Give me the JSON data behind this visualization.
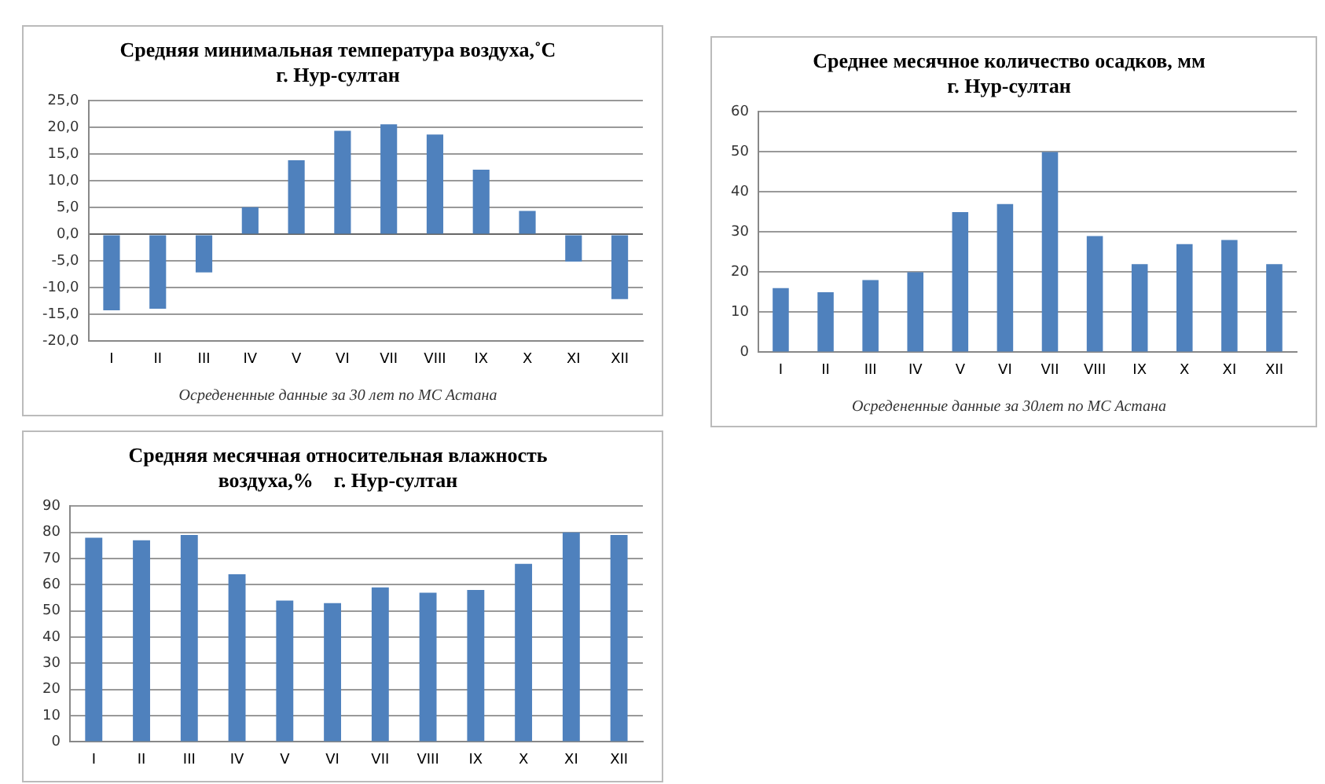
{
  "chart_data": [
    {
      "type": "bar",
      "title": [
        "Средняя минимальная температура воздуха,˚C",
        "г. Нур-султан"
      ],
      "categories": [
        "I",
        "II",
        "III",
        "IV",
        "V",
        "VI",
        "VII",
        "VIII",
        "IX",
        "X",
        "XI",
        "XII"
      ],
      "values": [
        -14.2,
        -13.9,
        -7.1,
        5.1,
        13.9,
        19.4,
        20.6,
        18.7,
        12.1,
        4.4,
        -5.1,
        -12.1
      ],
      "color": "#4f81bd",
      "ylim": [
        -20,
        25
      ],
      "yticks": [
        {
          "value": -20,
          "label": "-20,0"
        },
        {
          "value": -15,
          "label": "-15,0"
        },
        {
          "value": -10,
          "label": "-10,0"
        },
        {
          "value": -5,
          "label": "-5,0"
        },
        {
          "value": 0,
          "label": "0,0"
        },
        {
          "value": 5,
          "label": "5,0"
        },
        {
          "value": 10,
          "label": "10,0"
        },
        {
          "value": 15,
          "label": "15,0"
        },
        {
          "value": 20,
          "label": "20,0"
        },
        {
          "value": 25,
          "label": "25,0"
        }
      ],
      "grid": "y",
      "annotations": [
        "Осредененные данные за 30 лет по МС Астана"
      ]
    },
    {
      "type": "bar",
      "title": [
        "Среднее месячное количество осадков, мм",
        "г. Нур-султан"
      ],
      "categories": [
        "I",
        "II",
        "III",
        "IV",
        "V",
        "VI",
        "VII",
        "VIII",
        "IX",
        "X",
        "XI",
        "XII"
      ],
      "values": [
        16,
        15,
        18,
        20,
        35,
        37,
        50,
        29,
        22,
        27,
        28,
        22
      ],
      "color": "#4f81bd",
      "ylim": [
        0,
        60
      ],
      "yticks": [
        0,
        10,
        20,
        30,
        40,
        50,
        60
      ],
      "grid": "y",
      "annotations": [
        "Осредененные данные за 30лет по МС Астана"
      ]
    },
    {
      "type": "bar",
      "title": [
        "Средняя месячная относительная влажность",
        "воздуха,%    г. Нур-султан"
      ],
      "categories": [
        "I",
        "II",
        "III",
        "IV",
        "V",
        "VI",
        "VII",
        "VIII",
        "IX",
        "X",
        "XI",
        "XII"
      ],
      "values": [
        78,
        77,
        79,
        64,
        54,
        53,
        59,
        57,
        58,
        68,
        80,
        79
      ],
      "color": "#4f81bd",
      "ylim": [
        0,
        90
      ],
      "yticks": [
        0,
        10,
        20,
        30,
        40,
        50,
        60,
        70,
        80,
        90
      ],
      "grid": "y"
    }
  ]
}
